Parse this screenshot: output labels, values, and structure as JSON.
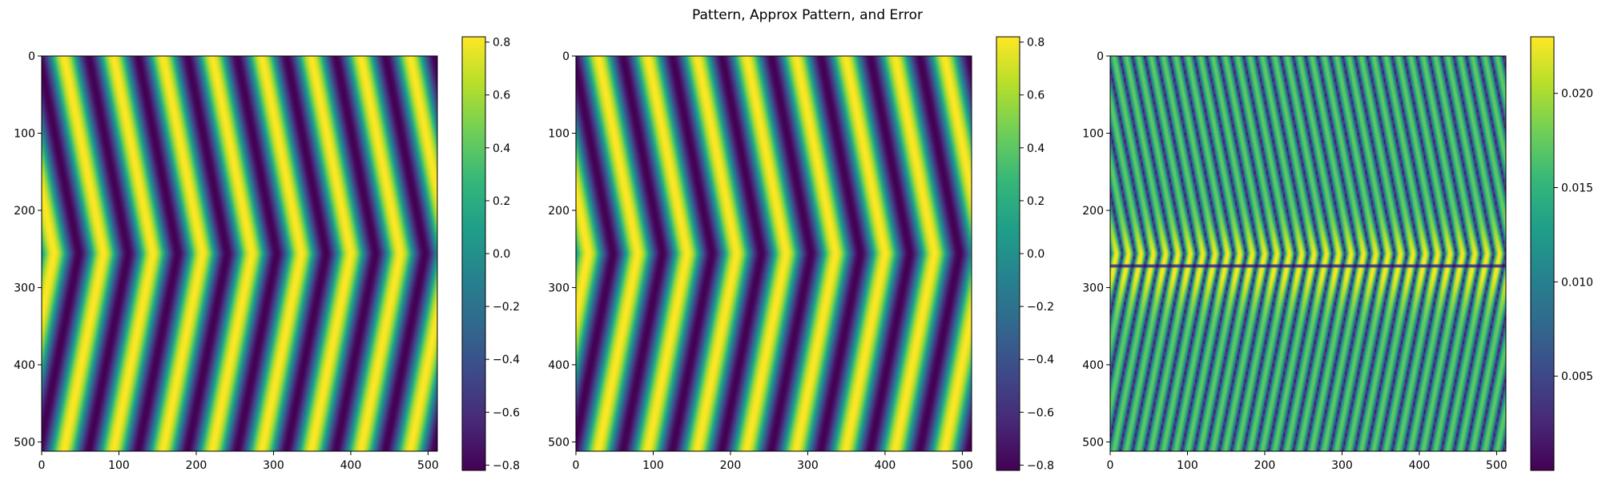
{
  "figure": {
    "suptitle": "Pattern, Approx Pattern, and Error"
  },
  "colormap": {
    "name": "viridis",
    "stops": [
      "#440154",
      "#482878",
      "#3e4989",
      "#31688e",
      "#26828e",
      "#1f9e89",
      "#35b779",
      "#6ece58",
      "#b5de2b",
      "#fde725"
    ]
  },
  "chart_data": [
    {
      "type": "heatmap",
      "panel": "pattern",
      "title": "",
      "xlabel": "",
      "ylabel": "",
      "image_size": [
        512,
        512
      ],
      "xlim": [
        0,
        512
      ],
      "ylim": [
        512,
        0
      ],
      "x_ticks": [
        0,
        100,
        200,
        300,
        400,
        500
      ],
      "y_ticks": [
        0,
        100,
        200,
        300,
        400,
        500
      ],
      "x_tick_labels": [
        "0",
        "100",
        "200",
        "300",
        "400",
        "500"
      ],
      "y_tick_labels": [
        "0",
        "100",
        "200",
        "300",
        "400",
        "500"
      ],
      "stripe_period_px": 64,
      "chevron_row": 256,
      "stripe_slope": 0.2,
      "colorbar": {
        "range": [
          -0.82,
          0.82
        ],
        "ticks": [
          -0.8,
          -0.6,
          -0.4,
          -0.2,
          0.0,
          0.2,
          0.4,
          0.6,
          0.8
        ],
        "tick_labels": [
          "−0.8",
          "−0.6",
          "−0.4",
          "−0.2",
          "0.0",
          "0.2",
          "0.4",
          "0.6",
          "0.8"
        ]
      }
    },
    {
      "type": "heatmap",
      "panel": "approx-pattern",
      "title": "",
      "xlabel": "",
      "ylabel": "",
      "image_size": [
        512,
        512
      ],
      "xlim": [
        0,
        512
      ],
      "ylim": [
        512,
        0
      ],
      "x_ticks": [
        0,
        100,
        200,
        300,
        400,
        500
      ],
      "y_ticks": [
        0,
        100,
        200,
        300,
        400,
        500
      ],
      "x_tick_labels": [
        "0",
        "100",
        "200",
        "300",
        "400",
        "500"
      ],
      "y_tick_labels": [
        "0",
        "100",
        "200",
        "300",
        "400",
        "500"
      ],
      "stripe_period_px": 64,
      "chevron_row": 256,
      "stripe_slope": 0.2,
      "colorbar": {
        "range": [
          -0.82,
          0.82
        ],
        "ticks": [
          -0.8,
          -0.6,
          -0.4,
          -0.2,
          0.0,
          0.2,
          0.4,
          0.6,
          0.8
        ],
        "tick_labels": [
          "−0.8",
          "−0.6",
          "−0.4",
          "−0.2",
          "0.0",
          "0.2",
          "0.4",
          "0.6",
          "0.8"
        ]
      }
    },
    {
      "type": "heatmap",
      "panel": "error",
      "title": "",
      "xlabel": "",
      "ylabel": "",
      "image_size": [
        512,
        512
      ],
      "xlim": [
        0,
        512
      ],
      "ylim": [
        512,
        0
      ],
      "x_ticks": [
        0,
        100,
        200,
        300,
        400,
        500
      ],
      "y_ticks": [
        0,
        100,
        200,
        300,
        400,
        500
      ],
      "x_tick_labels": [
        "0",
        "100",
        "200",
        "300",
        "400",
        "500"
      ],
      "y_tick_labels": [
        "0",
        "100",
        "200",
        "300",
        "400",
        "500"
      ],
      "stripe_period_px": 32,
      "chevron_row": 256,
      "stripe_slope": 0.2,
      "discontinuity_row": 272,
      "colorbar": {
        "range": [
          0.0,
          0.023
        ],
        "ticks": [
          0.005,
          0.01,
          0.015,
          0.02
        ],
        "tick_labels": [
          "0.005",
          "0.010",
          "0.015",
          "0.020"
        ]
      }
    }
  ]
}
